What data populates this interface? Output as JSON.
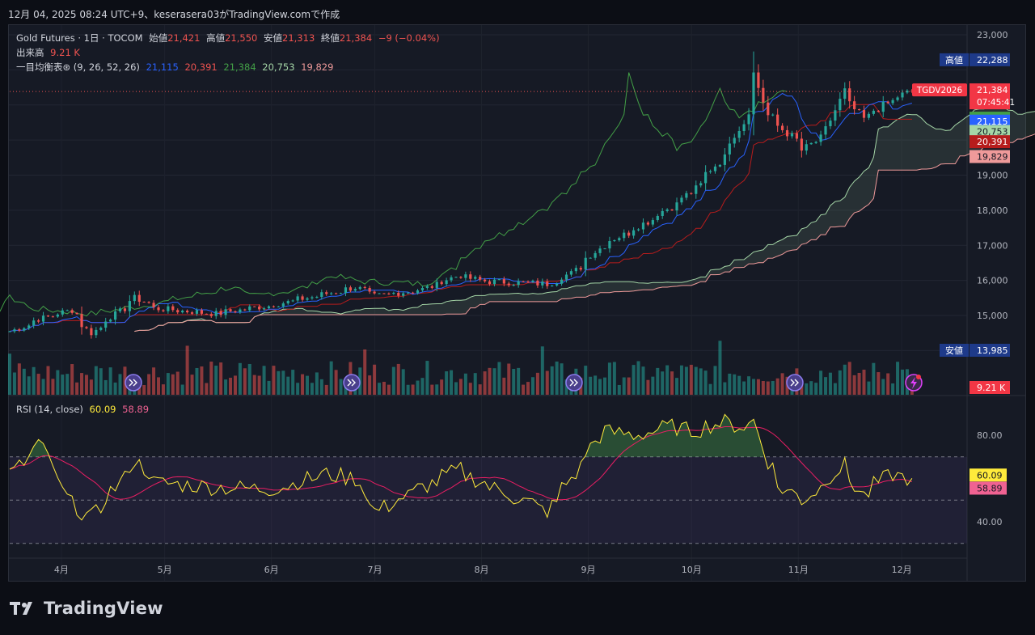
{
  "header": {
    "text": "12月 04, 2025 08:24 UTC+9、keserasera03がTradingView.comで作成"
  },
  "legend": {
    "title": "Gold Futures · 1日 · TOCOM",
    "open_label": "始値",
    "open": "21,421",
    "high_label": "高値",
    "high": "21,550",
    "low_label": "安値",
    "low": "21,313",
    "close_label": "終値",
    "close": "21,384",
    "change": "−9 (−0.04%)",
    "volume_label": "出来高",
    "volume": "9.21 K",
    "ichimoku_label": "一目均衡表⊛ (9, 26, 52, 26)",
    "ichimoku_values": [
      "21,115",
      "20,391",
      "21,384",
      "20,753",
      "19,829"
    ],
    "rsi_label": "RSI (14, close)",
    "rsi_value": "60.09",
    "rsi_ma_value": "58.89"
  },
  "colors": {
    "up": "#26a69a",
    "down": "#ef5350",
    "tenkan": "#2962ff",
    "kijun": "#b71c1c",
    "chikou": "#43a047",
    "spanA": "#a5d6a7",
    "spanB": "#ef9a9a",
    "rsi": "#ffeb3b",
    "rsi_ma": "#e91e63",
    "background": "#161a25"
  },
  "price_axis": {
    "ticks": [
      "23,000",
      "19,000",
      "18,000",
      "17,000",
      "16,000",
      "15,000"
    ]
  },
  "rsi_axis": {
    "ticks": [
      "80.00",
      "40.00"
    ]
  },
  "price_labels": [
    {
      "text": "高値",
      "value": "22,288",
      "kind": "high"
    },
    {
      "text": "TGDV2026",
      "value": "21,384",
      "sub": "07:45:41",
      "kind": "last"
    },
    {
      "text": "",
      "value": "21,384",
      "kind": "chikou"
    },
    {
      "text": "",
      "value": "21,115",
      "kind": "tenkan"
    },
    {
      "text": "",
      "value": "20,753",
      "kind": "spanA"
    },
    {
      "text": "",
      "value": "20,391",
      "kind": "kijun"
    },
    {
      "text": "",
      "value": "19,829",
      "kind": "spanB"
    },
    {
      "text": "安値",
      "value": "13,985",
      "kind": "low"
    },
    {
      "text": "",
      "value": "9.21 K",
      "kind": "volume"
    }
  ],
  "rsi_labels": [
    "60.09",
    "58.89"
  ],
  "time_axis": {
    "ticks": [
      "4月",
      "5月",
      "6月",
      "7月",
      "8月",
      "9月",
      "10月",
      "11月",
      "12月"
    ]
  },
  "footer": {
    "logo_icon": "tradingview-logo-icon",
    "brand": "TradingView"
  },
  "chart_data": {
    "type": "candlestick",
    "instrument": "Gold Futures · 1日 · TOCOM",
    "price_range": [
      13800,
      23200
    ],
    "rsi_range": [
      30,
      100
    ],
    "rsi_bands": [
      70,
      50,
      30
    ],
    "close_path": [
      {
        "date": "2025-03-17",
        "close": 14550
      },
      {
        "date": "2025-03-25",
        "close": 14900
      },
      {
        "date": "2025-04-03",
        "close": 15150
      },
      {
        "date": "2025-04-09",
        "close": 14500
      },
      {
        "date": "2025-04-22",
        "close": 15500
      },
      {
        "date": "2025-04-28",
        "close": 15200
      },
      {
        "date": "2025-05-15",
        "close": 15050
      },
      {
        "date": "2025-06-01",
        "close": 15300
      },
      {
        "date": "2025-06-16",
        "close": 15600
      },
      {
        "date": "2025-06-25",
        "close": 15800
      },
      {
        "date": "2025-07-01",
        "close": 15550
      },
      {
        "date": "2025-07-15",
        "close": 15750
      },
      {
        "date": "2025-07-25",
        "close": 16150
      },
      {
        "date": "2025-08-01",
        "close": 15980
      },
      {
        "date": "2025-08-20",
        "close": 15900
      },
      {
        "date": "2025-08-27",
        "close": 16200
      },
      {
        "date": "2025-09-05",
        "close": 17000
      },
      {
        "date": "2025-09-15",
        "close": 17500
      },
      {
        "date": "2025-09-25",
        "close": 18100
      },
      {
        "date": "2025-10-01",
        "close": 18500
      },
      {
        "date": "2025-10-10",
        "close": 19500
      },
      {
        "date": "2025-10-16",
        "close": 20500
      },
      {
        "date": "2025-10-20",
        "close": 21900
      },
      {
        "date": "2025-10-23",
        "close": 20700
      },
      {
        "date": "2025-10-27",
        "close": 20400
      },
      {
        "date": "2025-11-03",
        "close": 19700
      },
      {
        "date": "2025-11-10",
        "close": 20300
      },
      {
        "date": "2025-11-14",
        "close": 21400
      },
      {
        "date": "2025-11-20",
        "close": 20600
      },
      {
        "date": "2025-11-28",
        "close": 21100
      },
      {
        "date": "2025-12-04",
        "close": 21384
      }
    ],
    "rsi_path": [
      {
        "date": "2025-03-17",
        "v": 62
      },
      {
        "date": "2025-03-25",
        "v": 76
      },
      {
        "date": "2025-04-03",
        "v": 48
      },
      {
        "date": "2025-04-09",
        "v": 42
      },
      {
        "date": "2025-04-22",
        "v": 68
      },
      {
        "date": "2025-04-28",
        "v": 58
      },
      {
        "date": "2025-05-15",
        "v": 56
      },
      {
        "date": "2025-06-01",
        "v": 55
      },
      {
        "date": "2025-06-16",
        "v": 62
      },
      {
        "date": "2025-06-25",
        "v": 60
      },
      {
        "date": "2025-07-01",
        "v": 45
      },
      {
        "date": "2025-07-15",
        "v": 56
      },
      {
        "date": "2025-07-25",
        "v": 64
      },
      {
        "date": "2025-08-01",
        "v": 58
      },
      {
        "date": "2025-08-20",
        "v": 45
      },
      {
        "date": "2025-08-27",
        "v": 60
      },
      {
        "date": "2025-09-05",
        "v": 82
      },
      {
        "date": "2025-09-15",
        "v": 80
      },
      {
        "date": "2025-09-25",
        "v": 84
      },
      {
        "date": "2025-10-01",
        "v": 82
      },
      {
        "date": "2025-10-10",
        "v": 86
      },
      {
        "date": "2025-10-16",
        "v": 84
      },
      {
        "date": "2025-10-20",
        "v": 87
      },
      {
        "date": "2025-10-23",
        "v": 68
      },
      {
        "date": "2025-10-27",
        "v": 56
      },
      {
        "date": "2025-11-03",
        "v": 50
      },
      {
        "date": "2025-11-10",
        "v": 60
      },
      {
        "date": "2025-11-14",
        "v": 66
      },
      {
        "date": "2025-11-20",
        "v": 52
      },
      {
        "date": "2025-11-28",
        "v": 62
      },
      {
        "date": "2025-12-04",
        "v": 60.09
      }
    ],
    "last": {
      "close": 21384,
      "tenkan": 21115,
      "kijun": 20391,
      "chikou": 21384,
      "spanA": 20753,
      "spanB": 19829
    }
  }
}
